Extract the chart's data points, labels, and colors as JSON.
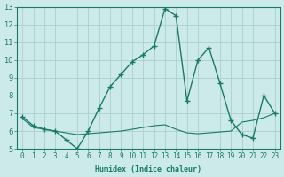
{
  "xlabel": "Humidex (Indice chaleur)",
  "x": [
    0,
    1,
    2,
    3,
    4,
    5,
    6,
    7,
    8,
    9,
    10,
    11,
    12,
    13,
    14,
    15,
    16,
    17,
    18,
    19,
    20,
    21,
    22,
    23
  ],
  "line1": [
    6.8,
    6.3,
    6.1,
    6.0,
    5.5,
    5.0,
    6.0,
    7.3,
    8.5,
    9.2,
    9.9,
    10.3,
    10.8,
    12.9,
    12.5,
    7.7,
    10.0,
    10.7,
    8.7,
    6.6,
    5.8,
    5.6,
    8.0,
    7.0
  ],
  "line2": [
    6.7,
    6.2,
    6.1,
    6.0,
    5.9,
    5.8,
    5.85,
    5.9,
    5.95,
    6.0,
    6.1,
    6.2,
    6.3,
    6.35,
    6.1,
    5.9,
    5.85,
    5.9,
    5.95,
    6.0,
    6.5,
    6.6,
    6.75,
    7.0
  ],
  "line_color": "#1a7a6a",
  "bg_color": "#cceaea",
  "grid_color": "#aacece",
  "ylim": [
    5,
    13
  ],
  "yticks": [
    5,
    6,
    7,
    8,
    9,
    10,
    11,
    12,
    13
  ],
  "xticks": [
    0,
    1,
    2,
    3,
    4,
    5,
    6,
    7,
    8,
    9,
    10,
    11,
    12,
    13,
    14,
    15,
    16,
    17,
    18,
    19,
    20,
    21,
    22,
    23
  ],
  "marker": "+",
  "markersize": 4,
  "linewidth1": 1.0,
  "linewidth2": 0.8,
  "xlabel_fontsize": 6.0,
  "tick_fontsize": 5.5
}
